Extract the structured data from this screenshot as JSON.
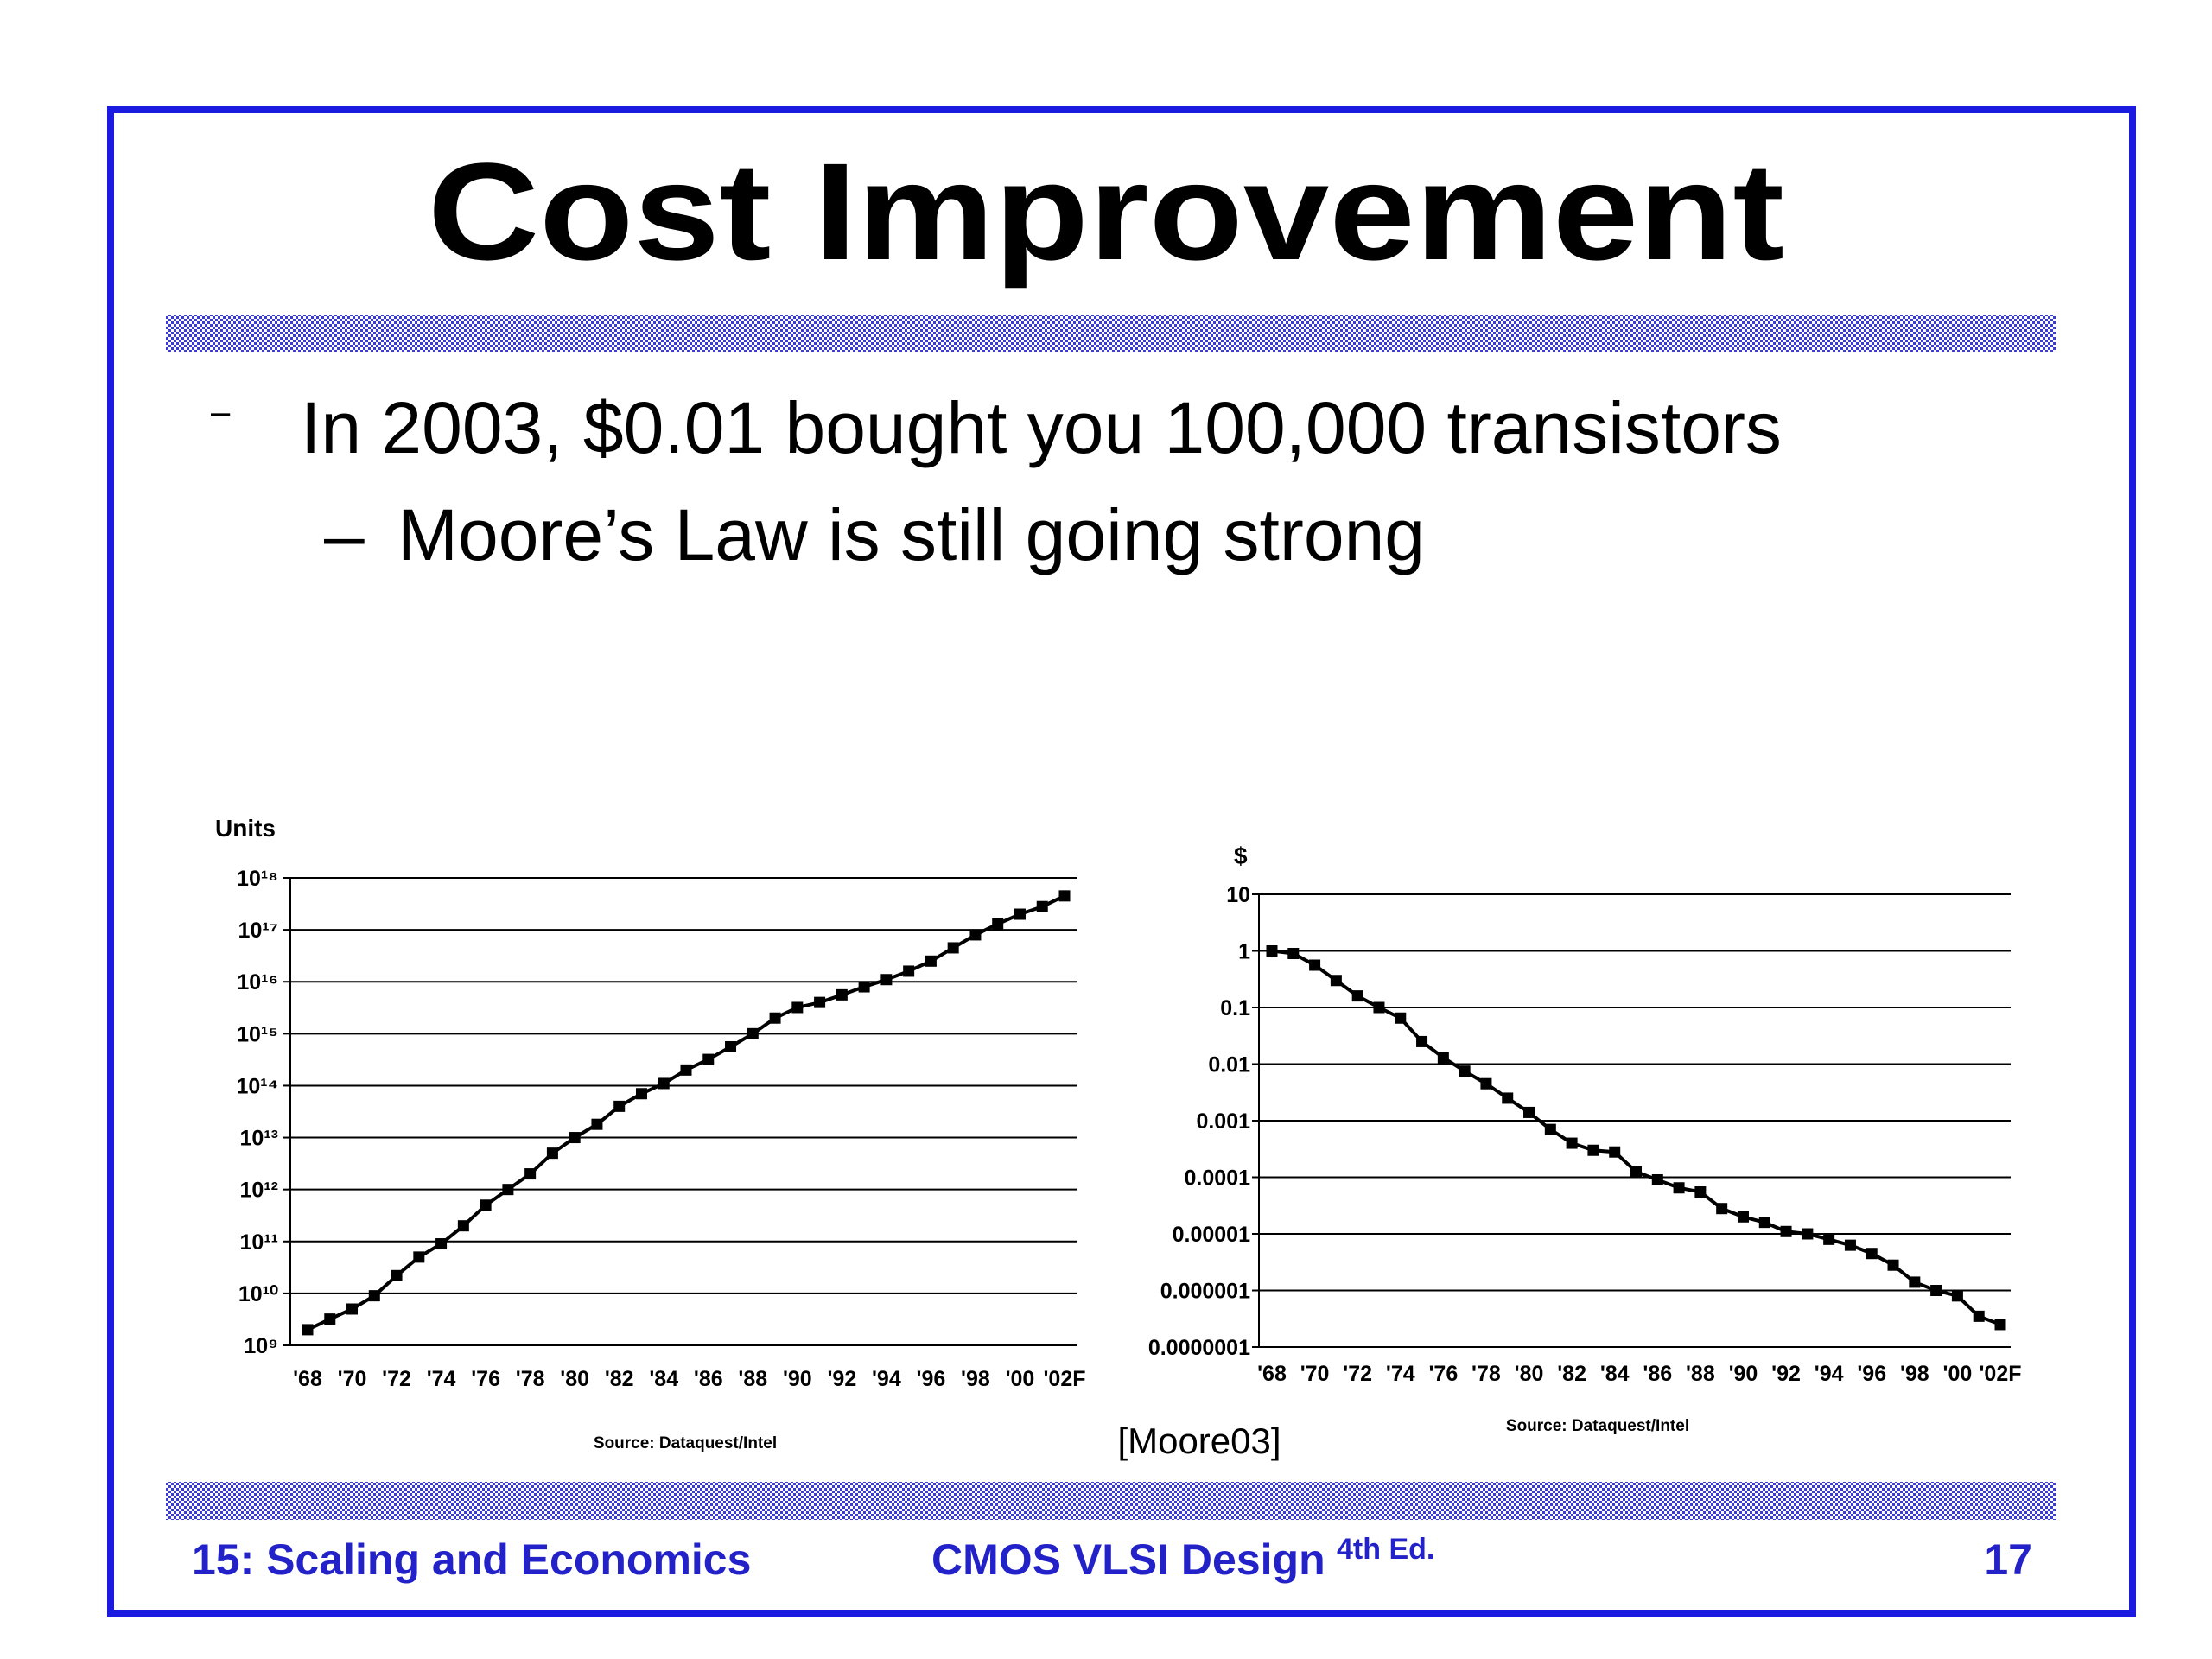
{
  "title": "Cost Improvement",
  "bullets": [
    {
      "marker": "–",
      "text": "In 2003, $0.01 bought you 100,000 transistors"
    },
    {
      "marker": "–",
      "text": "Moore’s Law is still going strong"
    }
  ],
  "citation": "[Moore03]",
  "footer": {
    "left": "15: Scaling and Economics",
    "center": "CMOS VLSI Design",
    "edition": "4th Ed.",
    "page": "17"
  },
  "chart_data": [
    {
      "type": "line",
      "y_label": "Units",
      "source": "Source: Dataquest/Intel",
      "color": "#000000",
      "log_y": true,
      "grid": true,
      "categories": [
        "'68",
        null,
        "'70",
        null,
        "'72",
        null,
        "'74",
        null,
        "'76",
        null,
        "'78",
        null,
        "'80",
        null,
        "'82",
        null,
        "'84",
        null,
        "'86",
        null,
        "'88",
        null,
        "'90",
        null,
        "'92",
        null,
        "'94",
        null,
        "'96",
        null,
        "'98",
        null,
        "'00",
        null,
        "'02F"
      ],
      "values": [
        2000000000.0,
        3200000000.0,
        5000000000.0,
        9000000000.0,
        22000000000.0,
        50000000000.0,
        90000000000.0,
        200000000000.0,
        500000000000.0,
        1000000000000.0,
        2000000000000.0,
        5000000000000.0,
        10000000000000.0,
        18000000000000.0,
        40000000000000.0,
        70000000000000.0,
        110000000000000.0,
        200000000000000.0,
        320000000000000.0,
        560000000000000.0,
        1000000000000000.0,
        2000000000000000.0,
        3200000000000000.0,
        4000000000000000.0,
        5600000000000000.0,
        8000000000000000.0,
        1.1e+16,
        1.6e+16,
        2.5e+16,
        4.5e+16,
        8e+16,
        1.3e+17,
        2e+17,
        2.8e+17,
        4.5e+17
      ],
      "ylim": [
        1000000000.0,
        1e+18
      ],
      "yticks": [
        {
          "value": 1000000000.0,
          "label": "10⁹"
        },
        {
          "value": 10000000000.0,
          "label": "10¹⁰"
        },
        {
          "value": 100000000000.0,
          "label": "10¹¹"
        },
        {
          "value": 1000000000000.0,
          "label": "10¹²"
        },
        {
          "value": 10000000000000.0,
          "label": "10¹³"
        },
        {
          "value": 100000000000000.0,
          "label": "10¹⁴"
        },
        {
          "value": 1000000000000000.0,
          "label": "10¹⁵"
        },
        {
          "value": 1e+16,
          "label": "10¹⁶"
        },
        {
          "value": 1e+17,
          "label": "10¹⁷"
        },
        {
          "value": 1e+18,
          "label": "10¹⁸"
        }
      ]
    },
    {
      "type": "line",
      "y_label": "$",
      "source": "Source: Dataquest/Intel",
      "color": "#000000",
      "log_y": true,
      "grid": true,
      "categories": [
        "'68",
        null,
        "'70",
        null,
        "'72",
        null,
        "'74",
        null,
        "'76",
        null,
        "'78",
        null,
        "'80",
        null,
        "'82",
        null,
        "'84",
        null,
        "'86",
        null,
        "'88",
        null,
        "'90",
        null,
        "'92",
        null,
        "'94",
        null,
        "'96",
        null,
        "'98",
        null,
        "'00",
        null,
        "'02F"
      ],
      "values": [
        1,
        0.9,
        0.56,
        0.3,
        0.16,
        0.1,
        0.065,
        0.025,
        0.013,
        0.0075,
        0.0045,
        0.0025,
        0.0014,
        0.0007,
        0.0004,
        0.0003,
        0.00028,
        0.000125,
        9e-05,
        6.5e-05,
        5.5e-05,
        2.8e-05,
        2e-05,
        1.6e-05,
        1.1e-05,
        1e-05,
        8e-06,
        6.3e-06,
        4.5e-06,
        2.8e-06,
        1.4e-06,
        1e-06,
        8e-07,
        3.5e-07,
        2.5e-07
      ],
      "ylim": [
        1e-07,
        10
      ],
      "yticks": [
        {
          "value": 1e-07,
          "label": "0.0000001"
        },
        1e-06,
        1e-05,
        0.0001,
        0.001,
        0.01,
        0.1,
        1,
        10
      ]
    }
  ]
}
